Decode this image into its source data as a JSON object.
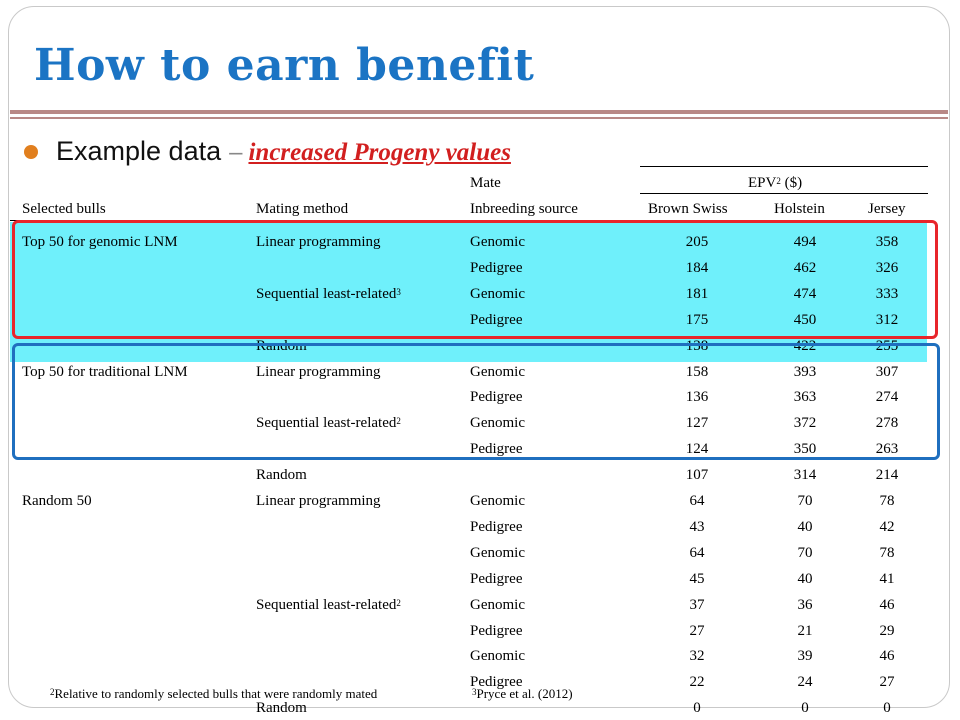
{
  "slide": {
    "title": "How to earn benefit",
    "bullet_text": "Example data",
    "dash": "–",
    "highlight": "increased Progeny values",
    "accent_color": "#1b74c4",
    "highlight_color": "#d21f1f",
    "band_color": "#6ff0fb",
    "red_box_color": "#e8252b",
    "blue_box_color": "#1f6fbf"
  },
  "table": {
    "header": {
      "selected": "Selected bulls",
      "method": "Mating method",
      "mate": "Mate",
      "source": "Inbreeding source",
      "epv_label": "EPV",
      "epv_sup": "2",
      "epv_unit": " ($)",
      "breeds": [
        "Brown Swiss",
        "Holstein",
        "Jersey"
      ]
    },
    "rows": [
      {
        "selected": "Top 50 for genomic LNM",
        "method": "Linear programming",
        "sup": "",
        "source": "Genomic",
        "values": [
          "205",
          "494",
          "358"
        ]
      },
      {
        "selected": "",
        "method": "",
        "sup": "",
        "source": "Pedigree",
        "values": [
          "184",
          "462",
          "326"
        ]
      },
      {
        "selected": "",
        "method": "Sequential least-related",
        "sup": "3",
        "source": "Genomic",
        "values": [
          "181",
          "474",
          "333"
        ]
      },
      {
        "selected": "",
        "method": "",
        "sup": "",
        "source": "Pedigree",
        "values": [
          "175",
          "450",
          "312"
        ]
      },
      {
        "selected": "",
        "method": "Random",
        "sup": "",
        "source": "",
        "values": [
          "138",
          "422",
          "255"
        ]
      },
      {
        "selected": "Top 50 for traditional LNM",
        "method": "Linear programming",
        "sup": "",
        "source": "Genomic",
        "values": [
          "158",
          "393",
          "307"
        ]
      },
      {
        "selected": "",
        "method": "",
        "sup": "",
        "source": "Pedigree",
        "values": [
          "136",
          "363",
          "274"
        ]
      },
      {
        "selected": "",
        "method": "Sequential least-related",
        "sup": "2",
        "source": "Genomic",
        "values": [
          "127",
          "372",
          "278"
        ]
      },
      {
        "selected": "",
        "method": "",
        "sup": "",
        "source": "Pedigree",
        "values": [
          "124",
          "350",
          "263"
        ]
      },
      {
        "selected": "",
        "method": "Random",
        "sup": "",
        "source": "",
        "values": [
          "107",
          "314",
          "214"
        ]
      },
      {
        "selected": "Random 50",
        "method": "Linear programming",
        "sup": "",
        "source": "Genomic",
        "values": [
          "64",
          "70",
          "78"
        ]
      },
      {
        "selected": "",
        "method": "",
        "sup": "",
        "source": "Pedigree",
        "values": [
          "43",
          "40",
          "42"
        ]
      },
      {
        "selected": "",
        "method": "",
        "sup": "",
        "source": "Genomic",
        "values": [
          "64",
          "70",
          "78"
        ]
      },
      {
        "selected": "",
        "method": "",
        "sup": "",
        "source": "Pedigree",
        "values": [
          "45",
          "40",
          "41"
        ]
      },
      {
        "selected": "",
        "method": "Sequential least-related",
        "sup": "2",
        "source": "Genomic",
        "values": [
          "37",
          "36",
          "46"
        ]
      },
      {
        "selected": "",
        "method": "",
        "sup": "",
        "source": "Pedigree",
        "values": [
          "27",
          "21",
          "29"
        ]
      },
      {
        "selected": "",
        "method": "",
        "sup": "",
        "source": "Genomic",
        "values": [
          "32",
          "39",
          "46"
        ]
      },
      {
        "selected": "",
        "method": "",
        "sup": "",
        "source": "Pedigree",
        "values": [
          "22",
          "24",
          "27"
        ]
      },
      {
        "selected": "",
        "method": "Random",
        "sup": "",
        "source": "",
        "values": [
          "0",
          "0",
          "0"
        ]
      }
    ]
  },
  "footnotes": {
    "note2_sup": "2",
    "note2": "Relative to randomly selected bulls that were randomly mated",
    "note3_sup": "3",
    "note3": "Pryce et al. (2012)"
  }
}
